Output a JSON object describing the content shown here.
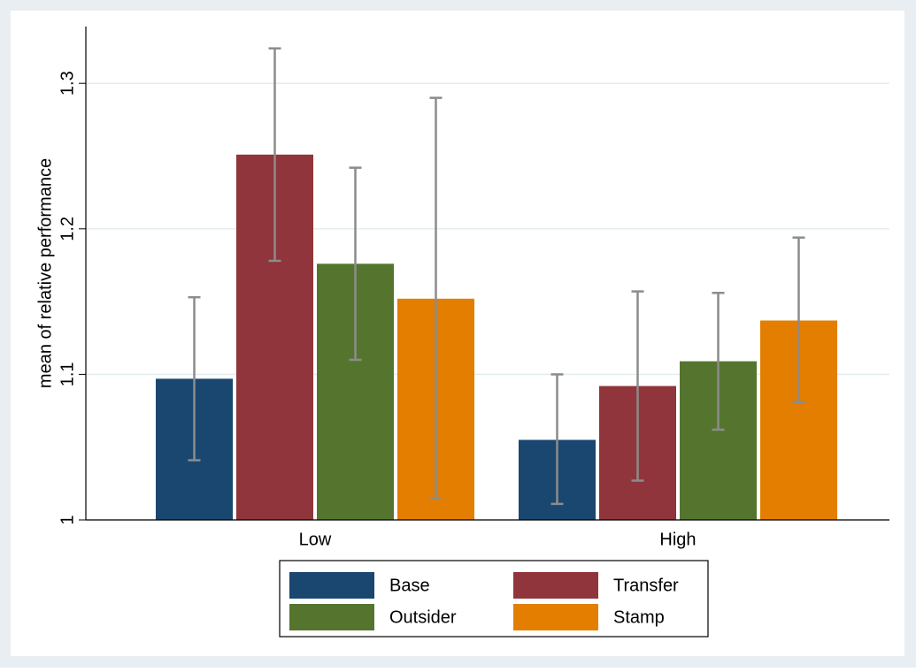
{
  "chart_data": {
    "type": "bar",
    "y_label": "mean of relative performance",
    "categories": [
      "Low",
      "High"
    ],
    "series": [
      {
        "name": "Base",
        "color": "#1a476f",
        "values": [
          1.097,
          1.055
        ],
        "ci_low": [
          1.041,
          1.011
        ],
        "ci_high": [
          1.153,
          1.1
        ]
      },
      {
        "name": "Transfer",
        "color": "#90353b",
        "values": [
          1.251,
          1.092
        ],
        "ci_low": [
          1.178,
          1.027
        ],
        "ci_high": [
          1.324,
          1.157
        ]
      },
      {
        "name": "Outsider",
        "color": "#55752f",
        "values": [
          1.176,
          1.109
        ],
        "ci_low": [
          1.11,
          1.062
        ],
        "ci_high": [
          1.242,
          1.156
        ]
      },
      {
        "name": "Stamp",
        "color": "#e37e00",
        "values": [
          1.152,
          1.137
        ],
        "ci_low": [
          1.015,
          1.081
        ],
        "ci_high": [
          1.29,
          1.194
        ]
      }
    ],
    "ylim": [
      1,
      1.339
    ],
    "yticks": [
      1,
      1.1,
      1.2,
      1.3
    ],
    "grid": true
  }
}
